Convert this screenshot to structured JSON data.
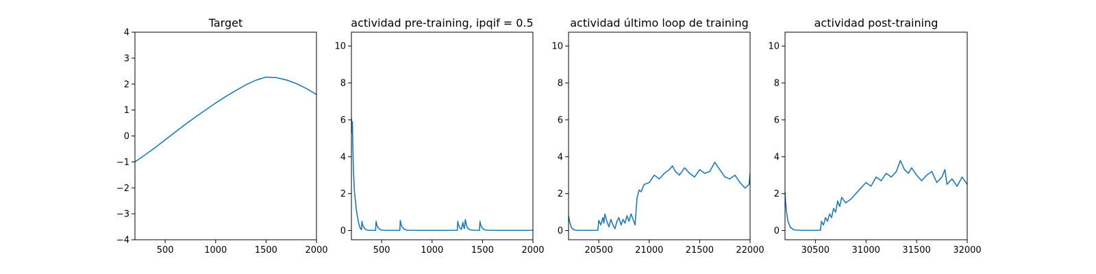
{
  "chart_data": [
    {
      "type": "line",
      "title": "Target",
      "xlabel": "",
      "ylabel": "",
      "xlim": [
        200,
        2000
      ],
      "ylim": [
        -4,
        4
      ],
      "xticks": [
        500,
        1000,
        1500,
        2000
      ],
      "yticks": [
        -4,
        -3,
        -2,
        -1,
        0,
        1,
        2,
        3,
        4
      ],
      "grid": false,
      "line_color": "#1f77b4",
      "series": [
        {
          "x": [
            200,
            300,
            400,
            500,
            600,
            700,
            800,
            900,
            1000,
            1100,
            1200,
            1300,
            1400,
            1500,
            1600,
            1700,
            1800,
            1900,
            2000
          ],
          "values": [
            -1.0,
            -0.73,
            -0.45,
            -0.15,
            0.15,
            0.45,
            0.73,
            1.0,
            1.27,
            1.52,
            1.75,
            1.97,
            2.15,
            2.27,
            2.25,
            2.16,
            2.02,
            1.83,
            1.6
          ]
        }
      ]
    },
    {
      "type": "line",
      "title": "actividad pre-training, ipqif = 0.5",
      "xlabel": "",
      "ylabel": "",
      "xlim": [
        200,
        2000
      ],
      "ylim": [
        -0.5,
        10.75
      ],
      "xticks": [
        500,
        1000,
        1500,
        2000
      ],
      "yticks": [
        0,
        2,
        4,
        6,
        8,
        10
      ],
      "grid": false,
      "line_color": "#1f77b4",
      "series": [
        {
          "x": [
            200,
            205,
            210,
            215,
            220,
            225,
            230,
            240,
            250,
            260,
            270,
            280,
            290,
            300,
            305,
            310,
            320,
            340,
            360,
            380,
            400,
            420,
            440,
            445,
            450,
            460,
            480,
            500,
            550,
            600,
            650,
            680,
            685,
            690,
            700,
            720,
            750,
            800,
            900,
            1000,
            1100,
            1200,
            1250,
            1255,
            1260,
            1270,
            1290,
            1300,
            1305,
            1310,
            1320,
            1330,
            1335,
            1340,
            1350,
            1370,
            1400,
            1450,
            1470,
            1475,
            1480,
            1490,
            1510,
            1540,
            1600,
            1700,
            1800,
            1900,
            2000
          ],
          "values": [
            6.1,
            5.3,
            5.9,
            4.4,
            3.3,
            2.7,
            2.1,
            1.6,
            1.1,
            0.75,
            0.45,
            0.25,
            0.1,
            0.05,
            0.5,
            0.35,
            0.2,
            0.06,
            0.02,
            0.01,
            0.01,
            0.01,
            0.01,
            0.5,
            0.35,
            0.2,
            0.06,
            0.02,
            0.01,
            0.01,
            0.01,
            0.01,
            0.55,
            0.4,
            0.22,
            0.08,
            0.02,
            0.01,
            0.01,
            0.01,
            0.01,
            0.01,
            0.01,
            0.5,
            0.35,
            0.2,
            0.06,
            0.3,
            0.45,
            0.25,
            0.1,
            0.6,
            0.45,
            0.3,
            0.15,
            0.05,
            0.02,
            0.01,
            0.01,
            0.5,
            0.35,
            0.2,
            0.06,
            0.02,
            0.01,
            0.01,
            0.01,
            0.01,
            0.01
          ]
        }
      ]
    },
    {
      "type": "line",
      "title": "actividad último loop de training",
      "xlabel": "",
      "ylabel": "",
      "xlim": [
        20200,
        22000
      ],
      "ylim": [
        -0.5,
        10.75
      ],
      "xticks": [
        20500,
        21000,
        21500,
        22000
      ],
      "yticks": [
        0,
        2,
        4,
        6,
        8,
        10
      ],
      "grid": false,
      "line_color": "#1f77b4",
      "series": [
        {
          "x": [
            20200,
            20210,
            20220,
            20230,
            20250,
            20270,
            20300,
            20350,
            20400,
            20450,
            20490,
            20500,
            20520,
            20540,
            20550,
            20560,
            20580,
            20600,
            20620,
            20640,
            20660,
            20680,
            20700,
            20720,
            20740,
            20760,
            20780,
            20800,
            20820,
            20840,
            20860,
            20870,
            20880,
            20900,
            20920,
            20950,
            21000,
            21050,
            21100,
            21150,
            21200,
            21230,
            21260,
            21300,
            21350,
            21400,
            21450,
            21500,
            21550,
            21600,
            21650,
            21700,
            21750,
            21800,
            21850,
            21900,
            21950,
            21990,
            22000
          ],
          "values": [
            0.8,
            0.5,
            0.3,
            0.15,
            0.05,
            0.02,
            0.01,
            0.01,
            0.01,
            0.01,
            0.01,
            0.55,
            0.3,
            0.7,
            0.4,
            0.9,
            0.5,
            0.2,
            0.6,
            0.3,
            0.1,
            0.5,
            0.7,
            0.3,
            0.6,
            0.4,
            0.8,
            0.5,
            0.9,
            0.6,
            0.3,
            1.1,
            1.8,
            2.2,
            2.1,
            2.5,
            2.6,
            3.0,
            2.8,
            3.1,
            3.3,
            3.5,
            3.2,
            3.0,
            3.4,
            3.1,
            2.9,
            3.3,
            3.1,
            3.2,
            3.7,
            3.3,
            2.9,
            2.8,
            3.0,
            2.6,
            2.3,
            2.5,
            3.1
          ]
        }
      ]
    },
    {
      "type": "line",
      "title": "actividad post-training",
      "xlabel": "",
      "ylabel": "",
      "xlim": [
        30200,
        32000
      ],
      "ylim": [
        -0.5,
        10.75
      ],
      "xticks": [
        30500,
        31000,
        31500,
        32000
      ],
      "yticks": [
        0,
        2,
        4,
        6,
        8,
        10
      ],
      "grid": false,
      "line_color": "#1f77b4",
      "series": [
        {
          "x": [
            30200,
            30205,
            30215,
            30230,
            30250,
            30280,
            30320,
            30400,
            30500,
            30550,
            30560,
            30580,
            30600,
            30620,
            30640,
            30660,
            30680,
            30700,
            30720,
            30740,
            30760,
            30800,
            30850,
            30900,
            30950,
            31000,
            31050,
            31100,
            31150,
            31200,
            31250,
            31300,
            31340,
            31380,
            31420,
            31450,
            31500,
            31550,
            31600,
            31650,
            31700,
            31750,
            31780,
            31800,
            31850,
            31900,
            31950,
            32000
          ],
          "values": [
            2.1,
            1.6,
            1.0,
            0.5,
            0.2,
            0.05,
            0.02,
            0.01,
            0.01,
            0.01,
            0.5,
            0.3,
            0.7,
            0.5,
            0.9,
            0.7,
            1.2,
            1.0,
            1.6,
            1.3,
            1.8,
            1.5,
            1.7,
            2.0,
            2.3,
            2.6,
            2.4,
            2.9,
            2.7,
            3.1,
            2.9,
            3.2,
            3.8,
            3.3,
            3.1,
            3.4,
            3.0,
            2.7,
            3.0,
            3.2,
            2.6,
            2.9,
            3.3,
            2.5,
            2.8,
            2.4,
            2.9,
            2.5
          ]
        }
      ]
    }
  ]
}
